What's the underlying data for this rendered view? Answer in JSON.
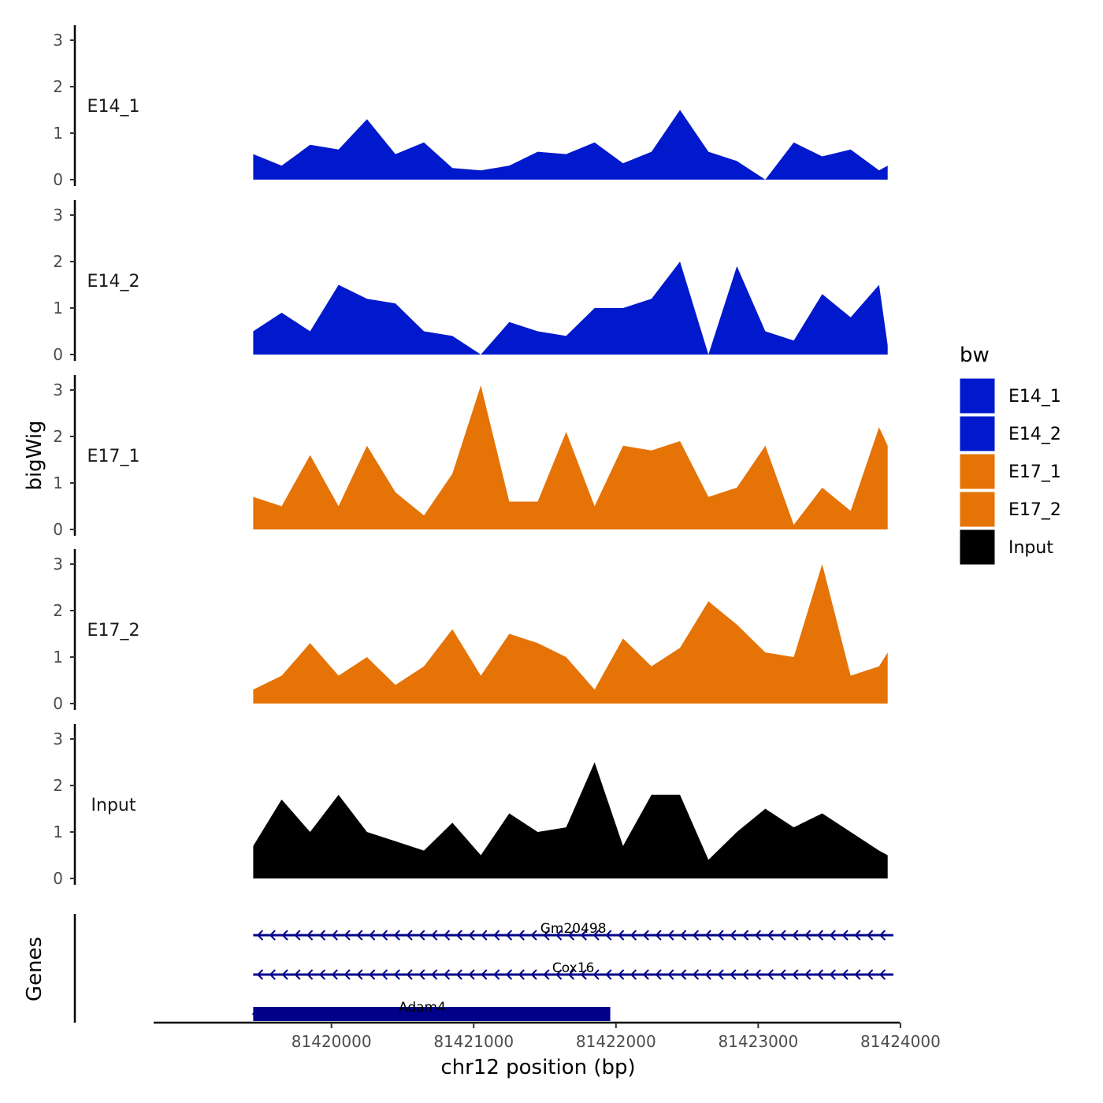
{
  "chart_data": {
    "type": "area",
    "title": "",
    "xlabel": "chr12 position (bp)",
    "ylabel": "bigWig",
    "genes_label": "Genes",
    "xlim": [
      81418750,
      81424150
    ],
    "ylim": [
      0,
      3.3
    ],
    "x_ticks": [
      81420000,
      81421000,
      81422000,
      81423000,
      81424000
    ],
    "x_tick_labels": [
      "81420000",
      "81421000",
      "81422000",
      "81423000",
      "81424000"
    ],
    "y_ticks": [
      0,
      1,
      2,
      3
    ],
    "y_tick_labels": [
      "0",
      "1",
      "2",
      "3"
    ],
    "legend": {
      "title": "bw",
      "position": "right",
      "entries": [
        {
          "name": "E14_1",
          "color": "#0019CC"
        },
        {
          "name": "E14_2",
          "color": "#0019CC"
        },
        {
          "name": "E17_1",
          "color": "#E67306"
        },
        {
          "name": "E17_2",
          "color": "#E67306"
        },
        {
          "name": "Input",
          "color": "#000000"
        }
      ]
    },
    "x": [
      81419450,
      81419650,
      81419850,
      81420050,
      81420250,
      81420450,
      81420650,
      81420850,
      81421050,
      81421250,
      81421450,
      81421650,
      81421850,
      81422050,
      81422250,
      81422450,
      81422650,
      81422850,
      81423050,
      81423250,
      81423450,
      81423650,
      81423850,
      81423910
    ],
    "series": [
      {
        "name": "E14_1",
        "color": "#0019CC",
        "values": [
          0.55,
          0.3,
          0.75,
          0.65,
          1.3,
          0.55,
          0.8,
          0.25,
          0.2,
          0.3,
          0.6,
          0.55,
          0.8,
          0.35,
          0.6,
          1.5,
          0.6,
          0.4,
          0.0,
          0.8,
          0.5,
          0.65,
          0.2,
          0.3
        ]
      },
      {
        "name": "E14_2",
        "color": "#0019CC",
        "values": [
          0.5,
          0.9,
          0.5,
          1.5,
          1.2,
          1.1,
          0.5,
          0.4,
          0.0,
          0.7,
          0.5,
          0.4,
          1.0,
          1.0,
          1.2,
          2.0,
          0.0,
          1.9,
          0.5,
          0.3,
          1.3,
          0.8,
          1.5,
          0.2
        ]
      },
      {
        "name": "E17_1",
        "color": "#E67306",
        "values": [
          0.7,
          0.5,
          1.6,
          0.5,
          1.8,
          0.8,
          0.3,
          1.2,
          3.1,
          0.6,
          0.6,
          2.1,
          0.5,
          1.8,
          1.7,
          1.9,
          0.7,
          0.9,
          1.8,
          0.1,
          0.9,
          0.4,
          2.2,
          1.8
        ]
      },
      {
        "name": "E17_2",
        "color": "#E67306",
        "values": [
          0.3,
          0.6,
          1.3,
          0.6,
          1.0,
          0.4,
          0.8,
          1.6,
          0.6,
          1.5,
          1.3,
          1.0,
          0.3,
          1.4,
          0.8,
          1.2,
          2.2,
          1.7,
          1.1,
          1.0,
          3.0,
          0.6,
          0.8,
          1.1
        ]
      },
      {
        "name": "Input",
        "color": "#000000",
        "values": [
          0.7,
          1.7,
          1.0,
          1.8,
          1.0,
          0.8,
          0.6,
          1.2,
          0.5,
          1.4,
          1.0,
          1.1,
          2.5,
          0.7,
          1.8,
          1.8,
          0.4,
          1.0,
          1.5,
          1.1,
          1.4,
          1.0,
          0.6,
          0.5
        ]
      }
    ],
    "genes": [
      {
        "name": "Gm20498",
        "start": 81419450,
        "end": 81423950,
        "strand": "-",
        "style": "line"
      },
      {
        "name": "Cox16",
        "start": 81419450,
        "end": 81423950,
        "strand": "-",
        "style": "line"
      },
      {
        "name": "Adam4",
        "start": 81419450,
        "end": 81421960,
        "strand": "-",
        "style": "block"
      }
    ]
  }
}
